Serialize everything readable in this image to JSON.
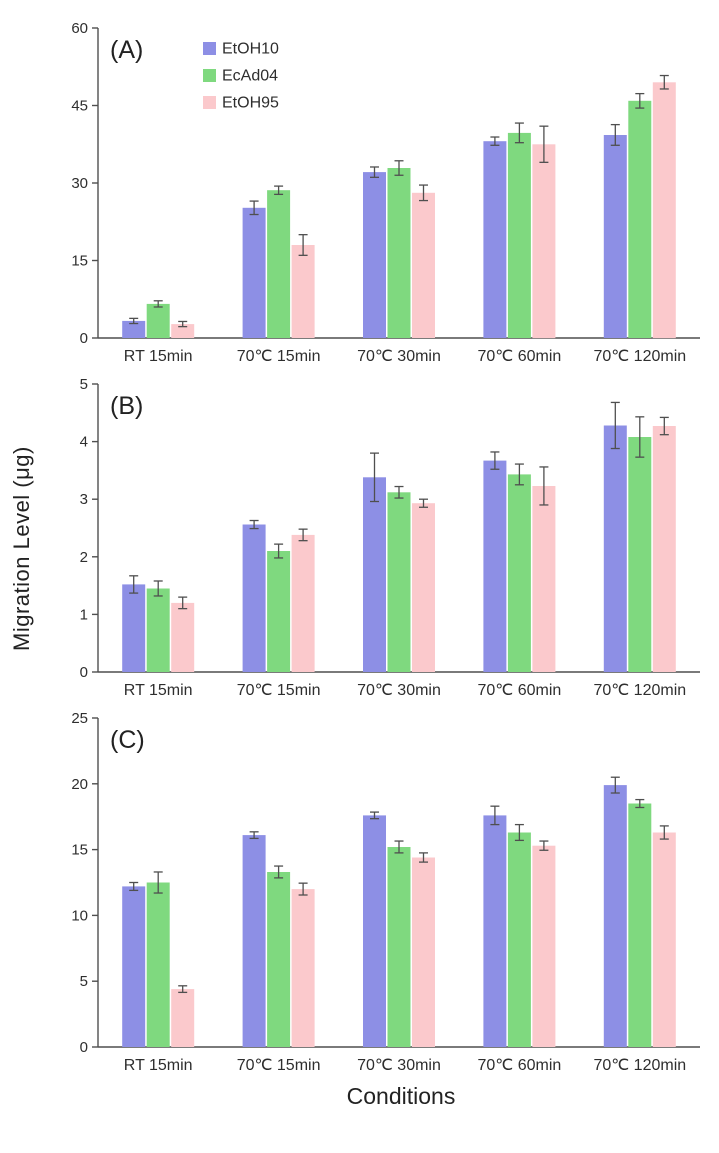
{
  "figure": {
    "ylabel": "Migration Level (μg)",
    "xlabel": "Conditions"
  },
  "colors": {
    "EtOH10": "#8d8fe5",
    "EcAd04": "#7fd97f",
    "EtOH95": "#fbc9cc",
    "error_bar": "#4f4f4f",
    "axis": "#4f4f4f",
    "text": "#2e2e2e"
  },
  "chart_data": [
    {
      "type": "bar",
      "panel_label": "(A)",
      "legend_position": "upper-left",
      "categories": [
        "RT 15min",
        "70℃ 15min",
        "70℃ 30min",
        "70℃ 60min",
        "70℃ 120min"
      ],
      "ylim": [
        0,
        60
      ],
      "yticks": [
        0,
        15,
        30,
        45,
        60
      ],
      "grid": false,
      "series": [
        {
          "name": "EtOH10",
          "color": "#8d8fe5",
          "values": [
            3.3,
            25.2,
            32.1,
            38.1,
            39.3
          ],
          "errors": [
            0.5,
            1.3,
            1.0,
            0.8,
            2.0
          ]
        },
        {
          "name": "EcAd04",
          "color": "#7fd97f",
          "values": [
            6.6,
            28.6,
            32.9,
            39.7,
            45.9
          ],
          "errors": [
            0.6,
            0.8,
            1.4,
            1.9,
            1.4
          ]
        },
        {
          "name": "EtOH95",
          "color": "#fbc9cc",
          "values": [
            2.7,
            18.0,
            28.1,
            37.5,
            49.5
          ],
          "errors": [
            0.5,
            2.0,
            1.5,
            3.5,
            1.3
          ]
        }
      ]
    },
    {
      "type": "bar",
      "panel_label": "(B)",
      "legend_position": "none",
      "categories": [
        "RT 15min",
        "70℃ 15min",
        "70℃ 30min",
        "70℃ 60min",
        "70℃ 120min"
      ],
      "ylim": [
        0,
        5
      ],
      "yticks": [
        0,
        1,
        2,
        3,
        4,
        5
      ],
      "grid": false,
      "series": [
        {
          "name": "EtOH10",
          "color": "#8d8fe5",
          "values": [
            1.52,
            2.56,
            3.38,
            3.67,
            4.28
          ],
          "errors": [
            0.15,
            0.07,
            0.42,
            0.15,
            0.4
          ]
        },
        {
          "name": "EcAd04",
          "color": "#7fd97f",
          "values": [
            1.45,
            2.1,
            3.12,
            3.43,
            4.08
          ],
          "errors": [
            0.13,
            0.12,
            0.1,
            0.18,
            0.35
          ]
        },
        {
          "name": "EtOH95",
          "color": "#fbc9cc",
          "values": [
            1.2,
            2.38,
            2.93,
            3.23,
            4.27
          ],
          "errors": [
            0.1,
            0.1,
            0.07,
            0.33,
            0.15
          ]
        }
      ]
    },
    {
      "type": "bar",
      "panel_label": "(C)",
      "legend_position": "none",
      "categories": [
        "RT 15min",
        "70℃ 15min",
        "70℃ 30min",
        "70℃ 60min",
        "70℃ 120min"
      ],
      "ylim": [
        0,
        25
      ],
      "yticks": [
        0,
        5,
        10,
        15,
        20,
        25
      ],
      "grid": false,
      "series": [
        {
          "name": "EtOH10",
          "color": "#8d8fe5",
          "values": [
            12.2,
            16.1,
            17.6,
            17.6,
            19.9
          ],
          "errors": [
            0.3,
            0.25,
            0.25,
            0.7,
            0.6
          ]
        },
        {
          "name": "EcAd04",
          "color": "#7fd97f",
          "values": [
            12.5,
            13.3,
            15.2,
            16.3,
            18.5
          ],
          "errors": [
            0.8,
            0.45,
            0.45,
            0.6,
            0.3
          ]
        },
        {
          "name": "EtOH95",
          "color": "#fbc9cc",
          "values": [
            4.4,
            12.0,
            14.4,
            15.3,
            16.3
          ],
          "errors": [
            0.25,
            0.45,
            0.35,
            0.35,
            0.5
          ]
        }
      ]
    }
  ]
}
